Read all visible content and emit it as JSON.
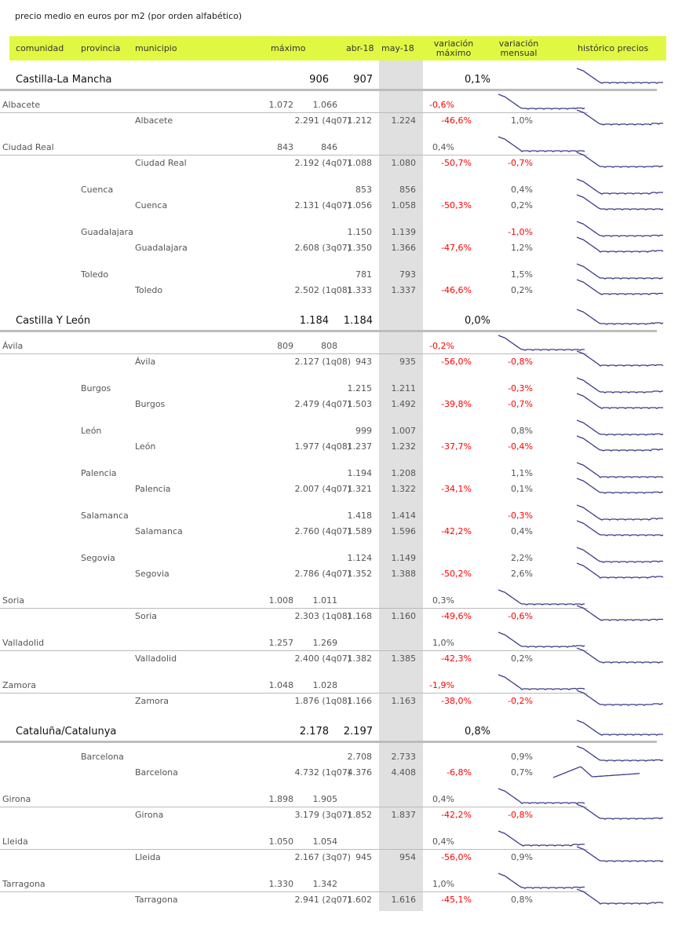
{
  "caption": "precio medio en euros por m2 (por orden alfabético)",
  "header": {
    "comunidad": "comunidad",
    "provincia": "provincia",
    "municipio": "municipio",
    "maximo": "máximo",
    "abr": "abr-18",
    "may": "may-18",
    "var_max_1": "variación",
    "var_max_2": "máximo",
    "var_men_1": "variación",
    "var_men_2": "mensual",
    "historico": "histórico precios"
  },
  "colors": {
    "header_bg": "#e1f843",
    "negative": "#ff0000",
    "spark": "#3a3a8a"
  },
  "regions": [
    {
      "name": "Castilla-La Mancha",
      "abr": "906",
      "may": "907",
      "var_men": "0,1%",
      "provinces": [
        {
          "name": "Albacete",
          "abr": "1.072",
          "may": "1.066",
          "var_men": "-0,6%",
          "lined": true,
          "mun": {
            "name": "Albacete",
            "max": "2.291 (4q07)",
            "abr": "1.212",
            "may": "1.224",
            "var_max": "-46,6%",
            "var_men": "1,0%"
          }
        },
        {
          "name": "Ciudad Real",
          "abr": "843",
          "may": "846",
          "var_men": "0,4%",
          "lined": true,
          "mun": {
            "name": "Ciudad Real",
            "max": "2.192 (4q07)",
            "abr": "1.088",
            "may": "1.080",
            "var_max": "-50,7%",
            "var_men": "-0,7%"
          }
        },
        {
          "name": "Cuenca",
          "abr": "853",
          "may": "856",
          "var_men": "0,4%",
          "lined": false,
          "mun": {
            "name": "Cuenca",
            "max": "2.131 (4q07)",
            "abr": "1.056",
            "may": "1.058",
            "var_max": "-50,3%",
            "var_men": "0,2%"
          }
        },
        {
          "name": "Guadalajara",
          "abr": "1.150",
          "may": "1.139",
          "var_men": "-1,0%",
          "lined": false,
          "mun": {
            "name": "Guadalajara",
            "max": "2.608 (3q07)",
            "abr": "1.350",
            "may": "1.366",
            "var_max": "-47,6%",
            "var_men": "1,2%"
          }
        },
        {
          "name": "Toledo",
          "abr": "781",
          "may": "793",
          "var_men": "1,5%",
          "lined": false,
          "mun": {
            "name": "Toledo",
            "max": "2.502 (1q08)",
            "abr": "1.333",
            "may": "1.337",
            "var_max": "-46,6%",
            "var_men": "0,2%"
          }
        }
      ]
    },
    {
      "name": "Castilla Y León",
      "abr": "1.184",
      "may": "1.184",
      "var_men": "0,0%",
      "provinces": [
        {
          "name": "Ávila",
          "abr": "809",
          "may": "808",
          "var_men": "-0,2%",
          "lined": true,
          "mun": {
            "name": "Ávila",
            "max": "2.127 (1q08)",
            "abr": "943",
            "may": "935",
            "var_max": "-56,0%",
            "var_men": "-0,8%"
          }
        },
        {
          "name": "Burgos",
          "abr": "1.215",
          "may": "1.211",
          "var_men": "-0,3%",
          "lined": false,
          "mun": {
            "name": "Burgos",
            "max": "2.479 (4q07)",
            "abr": "1.503",
            "may": "1.492",
            "var_max": "-39,8%",
            "var_men": "-0,7%"
          }
        },
        {
          "name": "León",
          "abr": "999",
          "may": "1.007",
          "var_men": "0,8%",
          "lined": false,
          "mun": {
            "name": "León",
            "max": "1.977 (4q08)",
            "abr": "1.237",
            "may": "1.232",
            "var_max": "-37,7%",
            "var_men": "-0,4%"
          }
        },
        {
          "name": "Palencia",
          "abr": "1.194",
          "may": "1.208",
          "var_men": "1,1%",
          "lined": false,
          "mun": {
            "name": "Palencia",
            "max": "2.007 (4q07)",
            "abr": "1.321",
            "may": "1.322",
            "var_max": "-34,1%",
            "var_men": "0,1%"
          }
        },
        {
          "name": "Salamanca",
          "abr": "1.418",
          "may": "1.414",
          "var_men": "-0,3%",
          "lined": false,
          "mun": {
            "name": "Salamanca",
            "max": "2.760 (4q07)",
            "abr": "1.589",
            "may": "1.596",
            "var_max": "-42,2%",
            "var_men": "0,4%"
          }
        },
        {
          "name": "Segovia",
          "abr": "1.124",
          "may": "1.149",
          "var_men": "2,2%",
          "lined": false,
          "mun": {
            "name": "Segovia",
            "max": "2.786 (4q07)",
            "abr": "1.352",
            "may": "1.388",
            "var_max": "-50,2%",
            "var_men": "2,6%"
          }
        },
        {
          "name": "Soria",
          "abr": "1.008",
          "may": "1.011",
          "var_men": "0,3%",
          "lined": true,
          "mun": {
            "name": "Soria",
            "max": "2.303 (1q08)",
            "abr": "1.168",
            "may": "1.160",
            "var_max": "-49,6%",
            "var_men": "-0,6%"
          }
        },
        {
          "name": "Valladolid",
          "abr": "1.257",
          "may": "1.269",
          "var_men": "1,0%",
          "lined": true,
          "mun": {
            "name": "Valladolid",
            "max": "2.400 (4q07)",
            "abr": "1.382",
            "may": "1.385",
            "var_max": "-42,3%",
            "var_men": "0,2%"
          }
        },
        {
          "name": "Zamora",
          "abr": "1.048",
          "may": "1.028",
          "var_men": "-1,9%",
          "lined": true,
          "mun": {
            "name": "Zamora",
            "max": "1.876 (1q08)",
            "abr": "1.166",
            "may": "1.163",
            "var_max": "-38,0%",
            "var_men": "-0,2%"
          }
        }
      ]
    },
    {
      "name": "Cataluña/Catalunya",
      "abr": "2.178",
      "may": "2.197",
      "var_men": "0,8%",
      "provinces": [
        {
          "name": "Barcelona",
          "abr": "2.708",
          "may": "2.733",
          "var_men": "0,9%",
          "lined": false,
          "mun": {
            "name": "Barcelona",
            "max": "4.732 (1q07)",
            "abr": "4.376",
            "may": "4.408",
            "var_max": "-6,8%",
            "var_men": "0,7%"
          }
        },
        {
          "name": "Girona",
          "abr": "1.898",
          "may": "1.905",
          "var_men": "0,4%",
          "lined": true,
          "mun": {
            "name": "Girona",
            "max": "3.179 (3q07)",
            "abr": "1.852",
            "may": "1.837",
            "var_max": "-42,2%",
            "var_men": "-0,8%"
          }
        },
        {
          "name": "Lleida",
          "abr": "1.050",
          "may": "1.054",
          "var_men": "0,4%",
          "lined": true,
          "mun": {
            "name": "Lleida",
            "max": "2.167 (3q07)",
            "abr": "945",
            "may": "954",
            "var_max": "-56,0%",
            "var_men": "0,9%"
          }
        },
        {
          "name": "Tarragona",
          "abr": "1.330",
          "may": "1.342",
          "var_men": "1,0%",
          "lined": true,
          "mun": {
            "name": "Tarragona",
            "max": "2.941 (2q07)",
            "abr": "1.602",
            "may": "1.616",
            "var_max": "-45,1%",
            "var_men": "0,8%"
          }
        }
      ]
    }
  ]
}
